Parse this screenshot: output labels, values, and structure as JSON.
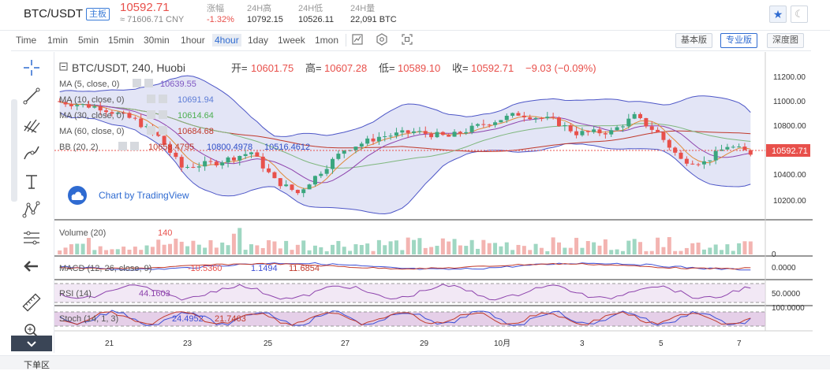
{
  "header": {
    "pair": "BTC/USDT",
    "board_tag": "主板",
    "last_price": "10592.71",
    "cny_price": "≈ 71606.71 CNY",
    "stats": [
      {
        "label": "涨幅",
        "value": "-1.32%"
      },
      {
        "label": "24H高",
        "value": "10792.15"
      },
      {
        "label": "24H低",
        "value": "10526.11"
      },
      {
        "label": "24H量",
        "value": "22,091 BTC"
      }
    ],
    "favorite_icon": "star-icon",
    "theme_icon": "moon-icon"
  },
  "toolbar": {
    "intervals": [
      "Time",
      "1min",
      "5min",
      "15min",
      "30min",
      "1hour",
      "4hour",
      "1day",
      "1week",
      "1mon"
    ],
    "active_interval": "4hour",
    "views": [
      "基本版",
      "专业版",
      "深度图"
    ],
    "active_view": "专业版"
  },
  "drawing_tools": [
    "crosshair-icon",
    "trendline-icon",
    "pitchfork-icon",
    "brush-icon",
    "text-icon",
    "pattern-icon",
    "fib-icon",
    "back-arrow-icon",
    "ruler-icon",
    "zoom-icon"
  ],
  "legend": {
    "symbol": "BTC/USDT, 240, Huobi",
    "open_label": "开=",
    "open": "10601.75",
    "high_label": "高=",
    "high": "10607.28",
    "low_label": "低=",
    "low": "10589.10",
    "close_label": "收=",
    "close": "10592.71",
    "change": "−9.03 (−0.09%)",
    "studies": [
      {
        "name": "MA (5, close, 0)",
        "value": "10639.55",
        "color": "#7e57c2"
      },
      {
        "name": "MA (10, close, 0)",
        "value": "10691.94",
        "color": "#5c7cd6"
      },
      {
        "name": "MA (30, close, 0)",
        "value": "10614.64",
        "color": "#4caf50"
      },
      {
        "name": "MA (60, close, 0)",
        "value": "10684.68",
        "color": "#c0392b"
      }
    ],
    "bb": {
      "name": "BB (20, 2)",
      "mid": "10658.4795",
      "upper": "10800.4978",
      "lower": "10516.4612"
    }
  },
  "watermark": "Chart by TradingView",
  "price_axis": [
    "11200.00",
    "11000.00",
    "10800.00",
    "10600.00",
    "10400.00",
    "10200.00"
  ],
  "price_tag": "10592.71",
  "time_axis": [
    "21",
    "23",
    "25",
    "27",
    "29",
    "10月",
    "3",
    "5",
    "7"
  ],
  "volume": {
    "label": "Volume (20)",
    "value": "140",
    "axis": "0"
  },
  "macd": {
    "label": "MACD (12, 26, close, 9)",
    "hist": "-10.5360",
    "macd": "1.1494",
    "signal": "11.6854",
    "axis": "0.0000"
  },
  "rsi": {
    "label": "RSI (14)",
    "value": "44.1603",
    "axis": "50.0000"
  },
  "stoch": {
    "label": "Stoch (14, 1, 3)",
    "k": "24.4952",
    "d": "21.7463",
    "axis": "100.0000"
  },
  "bottom": {
    "text": "下单区"
  },
  "colors": {
    "up": "#3aa67e",
    "down": "#e8504b",
    "accent": "#2f6bd1"
  }
}
